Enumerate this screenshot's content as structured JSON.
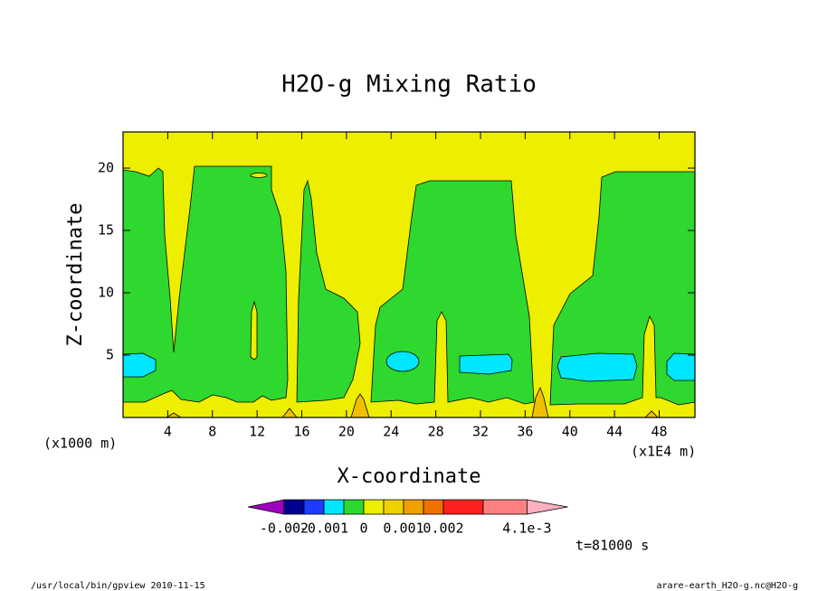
{
  "chart_data": {
    "type": "contour",
    "title": "H2O-g Mixing Ratio",
    "x_label": "X-coordinate",
    "y_label": "Z-coordinate",
    "x_unit": "(x1E4 m)",
    "y_unit": "(x1000 m)",
    "xlim": [
      0,
      51.2
    ],
    "ylim": [
      0,
      22.9
    ],
    "xticks": [
      4,
      8,
      12,
      16,
      20,
      24,
      28,
      32,
      36,
      40,
      44,
      48
    ],
    "yticks": [
      5,
      10,
      15,
      20
    ],
    "colorbar": {
      "levels": [
        -0.002,
        -0.0015,
        -0.001,
        -0.0005,
        0,
        0.0005,
        0.001,
        0.0015,
        0.002,
        0.003,
        0.0041
      ],
      "colors": [
        "#a000c0",
        "#000090",
        "#1e3cff",
        "#00e6ff",
        "#2ed82e",
        "#eeee00",
        "#f0d000",
        "#f0a000",
        "#f07000",
        "#ff2020",
        "#ff8080",
        "#ffb0c0"
      ],
      "ticks": [
        -0.002,
        -0.001,
        0,
        0.001,
        0.002,
        {
          "value": 0.0041,
          "label": "4.1e-3"
        }
      ]
    },
    "time_label": "t=81000 s",
    "footer_left": "/usr/local/bin/gpview  2010-11-15",
    "footer_right": "arare-earth_H2O-g.nc@H2O-g"
  }
}
